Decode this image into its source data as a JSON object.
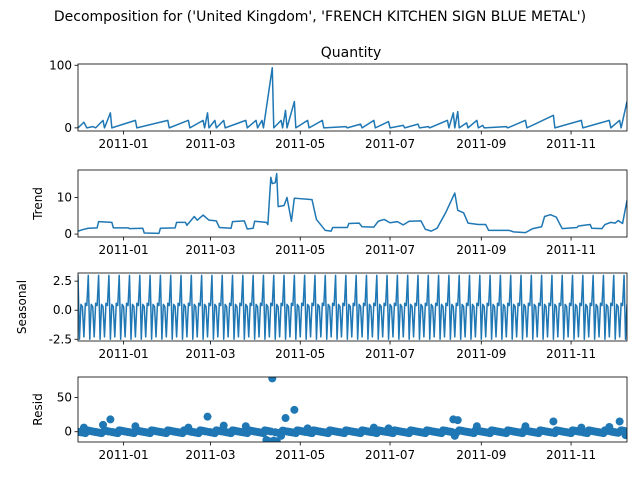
{
  "suptitle": "Decomposition for ('United Kingdom', 'FRENCH KITCHEN SIGN BLUE METAL')",
  "colors": {
    "line": "#1f77b4",
    "marker": "#1f77b4",
    "axes": "#000000"
  },
  "chart_data": [
    {
      "type": "line",
      "title": "Quantity",
      "ylabel": "",
      "ylim": [
        -5,
        102
      ],
      "yticks": [
        0,
        100
      ],
      "xlim": [
        "2010-12-01",
        "2011-12-09"
      ],
      "xticks": [
        "2011-01",
        "2011-03",
        "2011-05",
        "2011-07",
        "2011-09",
        "2011-11"
      ],
      "points": [
        [
          "2010-12-01",
          0
        ],
        [
          "2010-12-05",
          9
        ],
        [
          "2010-12-07",
          0
        ],
        [
          "2010-12-11",
          2
        ],
        [
          "2010-12-13",
          0
        ],
        [
          "2010-12-18",
          12
        ],
        [
          "2010-12-19",
          0
        ],
        [
          "2010-12-23",
          24
        ],
        [
          "2010-12-24",
          0
        ],
        [
          "2011-01-09",
          12
        ],
        [
          "2011-01-10",
          0
        ],
        [
          "2011-01-31",
          12
        ],
        [
          "2011-02-01",
          0
        ],
        [
          "2011-02-14",
          12
        ],
        [
          "2011-02-15",
          0
        ],
        [
          "2011-02-24",
          12
        ],
        [
          "2011-02-25",
          0
        ],
        [
          "2011-02-27",
          24
        ],
        [
          "2011-02-28",
          0
        ],
        [
          "2011-03-04",
          12
        ],
        [
          "2011-03-05",
          0
        ],
        [
          "2011-03-10",
          12
        ],
        [
          "2011-03-11",
          0
        ],
        [
          "2011-03-25",
          12
        ],
        [
          "2011-03-26",
          0
        ],
        [
          "2011-04-01",
          12
        ],
        [
          "2011-04-02",
          0
        ],
        [
          "2011-04-05",
          12
        ],
        [
          "2011-04-06",
          0
        ],
        [
          "2011-04-12",
          96
        ],
        [
          "2011-04-13",
          0
        ],
        [
          "2011-04-18",
          12
        ],
        [
          "2011-04-19",
          0
        ],
        [
          "2011-04-21",
          28
        ],
        [
          "2011-04-22",
          0
        ],
        [
          "2011-04-27",
          42
        ],
        [
          "2011-04-28",
          0
        ],
        [
          "2011-05-06",
          12
        ],
        [
          "2011-05-07",
          0
        ],
        [
          "2011-05-16",
          12
        ],
        [
          "2011-05-17",
          0
        ],
        [
          "2011-06-01",
          2
        ],
        [
          "2011-06-02",
          0
        ],
        [
          "2011-06-11",
          6
        ],
        [
          "2011-06-12",
          0
        ],
        [
          "2011-06-20",
          12
        ],
        [
          "2011-06-21",
          0
        ],
        [
          "2011-06-30",
          10
        ],
        [
          "2011-07-01",
          0
        ],
        [
          "2011-07-10",
          4
        ],
        [
          "2011-07-11",
          0
        ],
        [
          "2011-07-20",
          6
        ],
        [
          "2011-07-21",
          0
        ],
        [
          "2011-07-27",
          2
        ],
        [
          "2011-07-28",
          0
        ],
        [
          "2011-08-09",
          12
        ],
        [
          "2011-08-10",
          0
        ],
        [
          "2011-08-13",
          24
        ],
        [
          "2011-08-14",
          0
        ],
        [
          "2011-08-16",
          26
        ],
        [
          "2011-08-17",
          0
        ],
        [
          "2011-08-22",
          8
        ],
        [
          "2011-08-23",
          0
        ],
        [
          "2011-08-29",
          12
        ],
        [
          "2011-08-30",
          0
        ],
        [
          "2011-09-02",
          4
        ],
        [
          "2011-09-03",
          0
        ],
        [
          "2011-09-18",
          2
        ],
        [
          "2011-09-19",
          0
        ],
        [
          "2011-10-01",
          12
        ],
        [
          "2011-10-02",
          0
        ],
        [
          "2011-10-20",
          20
        ],
        [
          "2011-10-21",
          0
        ],
        [
          "2011-11-08",
          12
        ],
        [
          "2011-11-09",
          0
        ],
        [
          "2011-11-27",
          12
        ],
        [
          "2011-11-28",
          0
        ],
        [
          "2011-12-04",
          12
        ],
        [
          "2011-12-05",
          0
        ],
        [
          "2011-12-09",
          42
        ]
      ]
    },
    {
      "type": "line",
      "ylabel": "Trend",
      "ylim": [
        -0.8,
        17.5
      ],
      "yticks": [
        0,
        10
      ],
      "xlim": [
        "2010-12-01",
        "2011-12-09"
      ],
      "xticks": [
        "2011-01",
        "2011-03",
        "2011-05",
        "2011-07",
        "2011-09",
        "2011-11"
      ],
      "points": [
        [
          "2010-12-01",
          0.8
        ],
        [
          "2010-12-04",
          1.2
        ],
        [
          "2010-12-08",
          1.6
        ],
        [
          "2010-12-14",
          1.7
        ],
        [
          "2010-12-15",
          3.4
        ],
        [
          "2010-12-24",
          3.2
        ],
        [
          "2010-12-25",
          1.7
        ],
        [
          "2011-01-04",
          1.7
        ],
        [
          "2011-01-05",
          1.5
        ],
        [
          "2011-01-14",
          1.6
        ],
        [
          "2011-01-15",
          0.3
        ],
        [
          "2011-01-25",
          0.2
        ],
        [
          "2011-01-26",
          1.6
        ],
        [
          "2011-02-05",
          1.7
        ],
        [
          "2011-02-06",
          3.2
        ],
        [
          "2011-02-12",
          3.2
        ],
        [
          "2011-02-13",
          2.4
        ],
        [
          "2011-02-18",
          4.8
        ],
        [
          "2011-02-20",
          3.8
        ],
        [
          "2011-02-24",
          5.2
        ],
        [
          "2011-02-28",
          3.8
        ],
        [
          "2011-03-05",
          3.6
        ],
        [
          "2011-03-07",
          1.8
        ],
        [
          "2011-03-15",
          1.6
        ],
        [
          "2011-03-16",
          3.4
        ],
        [
          "2011-03-24",
          3.6
        ],
        [
          "2011-03-26",
          1.4
        ],
        [
          "2011-03-30",
          1.6
        ],
        [
          "2011-03-31",
          3.5
        ],
        [
          "2011-04-08",
          3.2
        ],
        [
          "2011-04-09",
          2.6
        ],
        [
          "2011-04-11",
          15.5
        ],
        [
          "2011-04-12",
          13.8
        ],
        [
          "2011-04-14",
          14.0
        ],
        [
          "2011-04-15",
          16.5
        ],
        [
          "2011-04-16",
          7.5
        ],
        [
          "2011-04-20",
          7.8
        ],
        [
          "2011-04-22",
          10.0
        ],
        [
          "2011-04-25",
          3.5
        ],
        [
          "2011-04-27",
          9.8
        ],
        [
          "2011-05-09",
          9.4
        ],
        [
          "2011-05-12",
          4.0
        ],
        [
          "2011-05-18",
          1.0
        ],
        [
          "2011-05-22",
          0.8
        ],
        [
          "2011-05-23",
          1.8
        ],
        [
          "2011-06-02",
          1.8
        ],
        [
          "2011-06-03",
          2.9
        ],
        [
          "2011-06-10",
          3.0
        ],
        [
          "2011-06-12",
          2.0
        ],
        [
          "2011-06-20",
          1.9
        ],
        [
          "2011-06-23",
          3.5
        ],
        [
          "2011-06-27",
          4.0
        ],
        [
          "2011-07-01",
          3.1
        ],
        [
          "2011-07-06",
          3.4
        ],
        [
          "2011-07-10",
          2.5
        ],
        [
          "2011-07-14",
          3.5
        ],
        [
          "2011-07-22",
          3.6
        ],
        [
          "2011-07-25",
          1.3
        ],
        [
          "2011-07-29",
          0.8
        ],
        [
          "2011-08-02",
          1.6
        ],
        [
          "2011-08-04",
          3.1
        ],
        [
          "2011-08-08",
          6.0
        ],
        [
          "2011-08-12",
          9.5
        ],
        [
          "2011-08-14",
          11.2
        ],
        [
          "2011-08-16",
          6.5
        ],
        [
          "2011-08-20",
          5.8
        ],
        [
          "2011-08-23",
          3.0
        ],
        [
          "2011-08-30",
          2.6
        ],
        [
          "2011-09-04",
          2.6
        ],
        [
          "2011-09-06",
          1.0
        ],
        [
          "2011-09-20",
          1.0
        ],
        [
          "2011-09-23",
          0.6
        ],
        [
          "2011-10-01",
          0.4
        ],
        [
          "2011-10-06",
          1.5
        ],
        [
          "2011-10-12",
          2.0
        ],
        [
          "2011-10-14",
          4.8
        ],
        [
          "2011-10-18",
          5.3
        ],
        [
          "2011-10-22",
          4.6
        ],
        [
          "2011-10-24",
          3.0
        ],
        [
          "2011-10-26",
          1.5
        ],
        [
          "2011-11-05",
          1.8
        ],
        [
          "2011-11-06",
          2.2
        ],
        [
          "2011-11-14",
          2.6
        ],
        [
          "2011-11-15",
          1.6
        ],
        [
          "2011-11-22",
          1.5
        ],
        [
          "2011-11-24",
          2.6
        ],
        [
          "2011-11-28",
          3.2
        ],
        [
          "2011-12-01",
          3.0
        ],
        [
          "2011-12-03",
          3.7
        ],
        [
          "2011-12-06",
          2.9
        ],
        [
          "2011-12-09",
          9.2
        ]
      ]
    },
    {
      "type": "line",
      "ylabel": "Seasonal",
      "ylim": [
        -2.65,
        3.2
      ],
      "yticks": [
        -2.5,
        0.0,
        2.5
      ],
      "xlim": [
        "2010-12-01",
        "2011-12-09"
      ],
      "xticks": [
        "2011-01",
        "2011-03",
        "2011-05",
        "2011-07",
        "2011-09",
        "2011-11"
      ],
      "period_days": 7,
      "weekly_pattern": [
        0.4,
        3.0,
        -2.5,
        0.5,
        0.3,
        -2.3,
        0.6
      ],
      "start_offset": 1
    },
    {
      "type": "scatter",
      "ylabel": "Resid",
      "ylim": [
        -15,
        80
      ],
      "yticks": [
        0,
        50
      ],
      "xlim": [
        "2010-12-01",
        "2011-12-09"
      ],
      "xticks": [
        "2011-01",
        "2011-03",
        "2011-05",
        "2011-07",
        "2011-09",
        "2011-11"
      ],
      "baseline": 0,
      "outliers": [
        [
          "2010-12-05",
          6
        ],
        [
          "2010-12-18",
          10
        ],
        [
          "2010-12-23",
          18
        ],
        [
          "2011-01-09",
          8
        ],
        [
          "2011-02-14",
          6
        ],
        [
          "2011-02-27",
          22
        ],
        [
          "2011-03-10",
          9
        ],
        [
          "2011-03-25",
          8
        ],
        [
          "2011-04-08",
          -12
        ],
        [
          "2011-04-10",
          -14
        ],
        [
          "2011-04-12",
          78
        ],
        [
          "2011-04-13",
          -13
        ],
        [
          "2011-04-15",
          -14
        ],
        [
          "2011-04-18",
          -6
        ],
        [
          "2011-04-21",
          20
        ],
        [
          "2011-04-27",
          32
        ],
        [
          "2011-05-06",
          5
        ],
        [
          "2011-06-20",
          6
        ],
        [
          "2011-06-30",
          5
        ],
        [
          "2011-08-13",
          18
        ],
        [
          "2011-08-16",
          17
        ],
        [
          "2011-08-14",
          -6
        ],
        [
          "2011-08-29",
          8
        ],
        [
          "2011-10-01",
          8
        ],
        [
          "2011-10-20",
          15
        ],
        [
          "2011-11-08",
          6
        ],
        [
          "2011-11-27",
          7
        ],
        [
          "2011-12-04",
          15
        ],
        [
          "2011-12-08",
          -5
        ]
      ]
    }
  ]
}
